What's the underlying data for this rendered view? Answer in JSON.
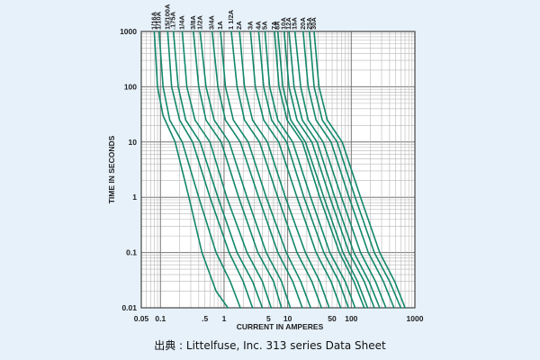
{
  "caption": "出典 : Littelfuse, Inc. 313 series Data Sheet",
  "chart_data": {
    "type": "line",
    "title": "",
    "xlabel": "CURRENT IN AMPERES",
    "ylabel": "TIME IN SECONDS",
    "x_scale": "log",
    "y_scale": "log",
    "xlim": [
      0.05,
      1000
    ],
    "ylim": [
      0.01,
      1000
    ],
    "x_ticks": [
      0.05,
      0.1,
      0.5,
      1,
      5,
      10,
      50,
      100,
      1000
    ],
    "x_tick_labels": [
      "0.05",
      "0.1",
      ".5",
      "1",
      "5",
      "10",
      "50",
      "100",
      "1000"
    ],
    "y_ticks": [
      0.01,
      0.1,
      1,
      10,
      100,
      1000
    ],
    "y_tick_labels": [
      "0.01",
      "0.1",
      "1",
      "10",
      "100",
      "1000"
    ],
    "grid": true,
    "line_color": "#12876a",
    "series": [
      {
        "name": "1/16A",
        "x": [
          0.08,
          0.09,
          0.11,
          0.17,
          0.28,
          0.45,
          0.75,
          1.15
        ],
        "y": [
          1000,
          100,
          30,
          10,
          1,
          0.1,
          0.02,
          0.01
        ]
      },
      {
        "name": "1/10A",
        "x": [
          0.095,
          0.11,
          0.14,
          0.22,
          0.4,
          0.75,
          1.25,
          1.8
        ],
        "y": [
          1000,
          100,
          25,
          10,
          1,
          0.1,
          0.03,
          0.01
        ]
      },
      {
        "name": "15/100A",
        "x": [
          0.13,
          0.15,
          0.2,
          0.32,
          0.6,
          1.2,
          2.0,
          2.8
        ],
        "y": [
          1000,
          100,
          25,
          10,
          1,
          0.1,
          0.03,
          0.01
        ]
      },
      {
        "name": ".175A",
        "x": [
          0.16,
          0.19,
          0.25,
          0.42,
          0.8,
          1.6,
          2.8,
          4.0
        ],
        "y": [
          1000,
          100,
          25,
          10,
          1,
          0.1,
          0.03,
          0.01
        ]
      },
      {
        "name": "1/4A",
        "x": [
          0.22,
          0.26,
          0.35,
          0.6,
          1.1,
          2.3,
          4.0,
          5.5
        ],
        "y": [
          1000,
          100,
          25,
          10,
          1,
          0.1,
          0.03,
          0.01
        ]
      },
      {
        "name": "3/8A",
        "x": [
          0.33,
          0.4,
          0.52,
          0.9,
          1.7,
          3.4,
          6.0,
          8.0
        ],
        "y": [
          1000,
          100,
          25,
          10,
          1,
          0.1,
          0.03,
          0.01
        ]
      },
      {
        "name": "1/2A",
        "x": [
          0.42,
          0.52,
          0.7,
          1.2,
          2.3,
          4.6,
          8.0,
          11
        ],
        "y": [
          1000,
          100,
          25,
          10,
          1,
          0.1,
          0.03,
          0.01
        ]
      },
      {
        "name": "3/4A",
        "x": [
          0.65,
          0.8,
          1.05,
          1.8,
          3.5,
          7.0,
          12,
          17
        ],
        "y": [
          1000,
          100,
          25,
          10,
          1,
          0.1,
          0.03,
          0.01
        ]
      },
      {
        "name": "1A",
        "x": [
          0.88,
          1.05,
          1.4,
          2.4,
          4.6,
          9.5,
          16,
          23
        ],
        "y": [
          1000,
          100,
          25,
          10,
          1,
          0.1,
          0.03,
          0.01
        ]
      },
      {
        "name": "1 1/2A",
        "x": [
          1.3,
          1.6,
          2.1,
          3.6,
          7.0,
          14,
          24,
          34
        ],
        "y": [
          1000,
          100,
          25,
          10,
          1,
          0.1,
          0.03,
          0.01
        ]
      },
      {
        "name": "2A",
        "x": [
          1.75,
          2.1,
          2.8,
          4.8,
          9.2,
          19,
          32,
          45
        ],
        "y": [
          1000,
          100,
          25,
          10,
          1,
          0.1,
          0.03,
          0.01
        ]
      },
      {
        "name": "3A",
        "x": [
          2.6,
          3.1,
          4.2,
          7.2,
          14,
          28,
          48,
          68
        ],
        "y": [
          1000,
          100,
          25,
          10,
          1,
          0.1,
          0.03,
          0.01
        ]
      },
      {
        "name": "4A",
        "x": [
          3.5,
          4.2,
          5.6,
          9.6,
          18,
          37,
          64,
          90
        ],
        "y": [
          1000,
          100,
          25,
          10,
          1,
          0.1,
          0.03,
          0.01
        ]
      },
      {
        "name": "5A",
        "x": [
          4.4,
          5.2,
          7.0,
          12,
          23,
          46,
          80,
          115
        ],
        "y": [
          1000,
          100,
          25,
          10,
          1,
          0.1,
          0.03,
          0.01
        ]
      },
      {
        "name": "7A",
        "x": [
          6.2,
          7.3,
          9.8,
          17,
          32,
          65,
          110,
          160
        ],
        "y": [
          1000,
          100,
          25,
          10,
          1,
          0.1,
          0.03,
          0.01
        ]
      },
      {
        "name": "8A",
        "x": [
          7.0,
          8.4,
          11.2,
          19,
          37,
          74,
          125,
          180
        ],
        "y": [
          1000,
          100,
          25,
          10,
          1,
          0.1,
          0.03,
          0.01
        ]
      },
      {
        "name": "10A",
        "x": [
          8.8,
          10.5,
          14,
          24,
          46,
          92,
          160,
          230
        ],
        "y": [
          1000,
          100,
          25,
          10,
          1,
          0.1,
          0.03,
          0.01
        ]
      },
      {
        "name": "12A",
        "x": [
          10.5,
          12.6,
          17,
          29,
          55,
          110,
          190,
          280
        ],
        "y": [
          1000,
          100,
          25,
          10,
          1,
          0.1,
          0.03,
          0.01
        ]
      },
      {
        "name": "15A",
        "x": [
          13,
          16,
          21,
          36,
          70,
          140,
          240,
          350
        ],
        "y": [
          1000,
          100,
          25,
          10,
          1,
          0.1,
          0.03,
          0.01
        ]
      },
      {
        "name": "20A",
        "x": [
          17.5,
          21,
          28,
          48,
          92,
          185,
          320,
          470
        ],
        "y": [
          1000,
          100,
          25,
          10,
          1,
          0.1,
          0.03,
          0.01
        ]
      },
      {
        "name": "25A",
        "x": [
          22,
          26,
          35,
          60,
          115,
          230,
          400,
          600
        ],
        "y": [
          1000,
          100,
          25,
          10,
          1,
          0.1,
          0.03,
          0.01
        ]
      },
      {
        "name": "30A",
        "x": [
          26,
          31,
          42,
          72,
          140,
          280,
          480,
          700
        ],
        "y": [
          1000,
          100,
          25,
          10,
          1,
          0.1,
          0.03,
          0.01
        ]
      }
    ]
  }
}
